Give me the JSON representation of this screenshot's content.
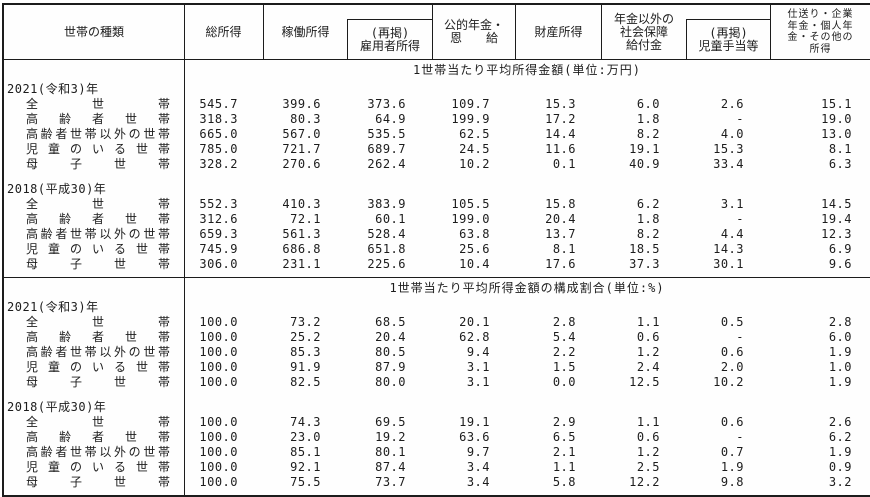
{
  "header": {
    "cols": [
      "世帯の種類",
      "総所得",
      "稼働所得",
      "(再掲)\n雇用者所得",
      "公的年金・\n恩　　給",
      "財産所得",
      "年金以外の\n社会保障\n給付金",
      "(再掲)\n児童手当等",
      "仕送り・企業\n年金・個人年\n金・その他の\n所得"
    ]
  },
  "sections": [
    {
      "title": "1世帯当たり平均所得金額(単位:万円)",
      "year_blocks": [
        {
          "year": "2021(令和3)年",
          "rows": [
            {
              "label": "全世帯",
              "values": [
                "545.7",
                "399.6",
                "373.6",
                "109.7",
                "15.3",
                "6.0",
                "2.6",
                "15.1"
              ]
            },
            {
              "label": "高齢者世帯",
              "values": [
                "318.3",
                "80.3",
                "64.9",
                "199.9",
                "17.2",
                "1.8",
                "-",
                "19.0"
              ]
            },
            {
              "label": "高齢者世帯以外の世帯",
              "values": [
                "665.0",
                "567.0",
                "535.5",
                "62.5",
                "14.4",
                "8.2",
                "4.0",
                "13.0"
              ]
            },
            {
              "label": "児童のいる世帯",
              "values": [
                "785.0",
                "721.7",
                "689.7",
                "24.5",
                "11.6",
                "19.1",
                "15.3",
                "8.1"
              ]
            },
            {
              "label": "母子世帯",
              "values": [
                "328.2",
                "270.6",
                "262.4",
                "10.2",
                "0.1",
                "40.9",
                "33.4",
                "6.3"
              ]
            }
          ]
        },
        {
          "year": "2018(平成30)年",
          "rows": [
            {
              "label": "全世帯",
              "values": [
                "552.3",
                "410.3",
                "383.9",
                "105.5",
                "15.8",
                "6.2",
                "3.1",
                "14.5"
              ]
            },
            {
              "label": "高齢者世帯",
              "values": [
                "312.6",
                "72.1",
                "60.1",
                "199.0",
                "20.4",
                "1.8",
                "-",
                "19.4"
              ]
            },
            {
              "label": "高齢者世帯以外の世帯",
              "values": [
                "659.3",
                "561.3",
                "528.4",
                "63.8",
                "13.7",
                "8.2",
                "4.4",
                "12.3"
              ]
            },
            {
              "label": "児童のいる世帯",
              "values": [
                "745.9",
                "686.8",
                "651.8",
                "25.6",
                "8.1",
                "18.5",
                "14.3",
                "6.9"
              ]
            },
            {
              "label": "母子世帯",
              "values": [
                "306.0",
                "231.1",
                "225.6",
                "10.4",
                "17.6",
                "37.3",
                "30.1",
                "9.6"
              ]
            }
          ]
        }
      ]
    },
    {
      "title": "1世帯当たり平均所得金額の構成割合(単位:%)",
      "year_blocks": [
        {
          "year": "2021(令和3)年",
          "rows": [
            {
              "label": "全世帯",
              "values": [
                "100.0",
                "73.2",
                "68.5",
                "20.1",
                "2.8",
                "1.1",
                "0.5",
                "2.8"
              ]
            },
            {
              "label": "高齢者世帯",
              "values": [
                "100.0",
                "25.2",
                "20.4",
                "62.8",
                "5.4",
                "0.6",
                "-",
                "6.0"
              ]
            },
            {
              "label": "高齢者世帯以外の世帯",
              "values": [
                "100.0",
                "85.3",
                "80.5",
                "9.4",
                "2.2",
                "1.2",
                "0.6",
                "1.9"
              ]
            },
            {
              "label": "児童のいる世帯",
              "values": [
                "100.0",
                "91.9",
                "87.9",
                "3.1",
                "1.5",
                "2.4",
                "2.0",
                "1.0"
              ]
            },
            {
              "label": "母子世帯",
              "values": [
                "100.0",
                "82.5",
                "80.0",
                "3.1",
                "0.0",
                "12.5",
                "10.2",
                "1.9"
              ]
            }
          ]
        },
        {
          "year": "2018(平成30)年",
          "rows": [
            {
              "label": "全世帯",
              "values": [
                "100.0",
                "74.3",
                "69.5",
                "19.1",
                "2.9",
                "1.1",
                "0.6",
                "2.6"
              ]
            },
            {
              "label": "高齢者世帯",
              "values": [
                "100.0",
                "23.0",
                "19.2",
                "63.6",
                "6.5",
                "0.6",
                "-",
                "6.2"
              ]
            },
            {
              "label": "高齢者世帯以外の世帯",
              "values": [
                "100.0",
                "85.1",
                "80.1",
                "9.7",
                "2.1",
                "1.2",
                "0.7",
                "1.9"
              ]
            },
            {
              "label": "児童のいる世帯",
              "values": [
                "100.0",
                "92.1",
                "87.4",
                "3.4",
                "1.1",
                "2.5",
                "1.9",
                "0.9"
              ]
            },
            {
              "label": "母子世帯",
              "values": [
                "100.0",
                "75.5",
                "73.7",
                "3.4",
                "5.8",
                "12.2",
                "9.8",
                "3.2"
              ]
            }
          ]
        }
      ]
    }
  ]
}
